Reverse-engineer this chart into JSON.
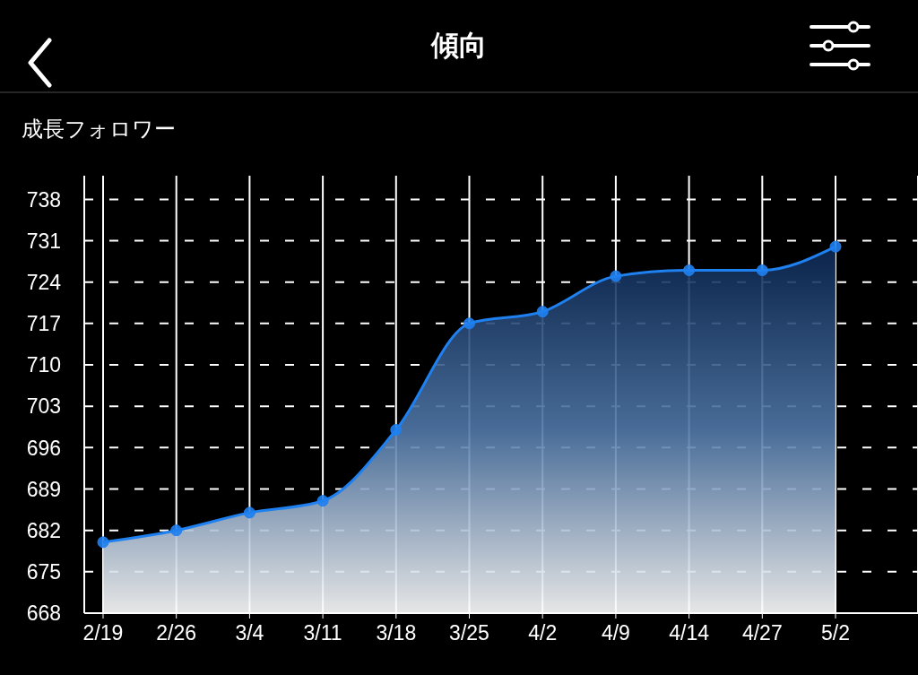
{
  "chart_data": {
    "type": "area",
    "title": "傾向",
    "subtitle": "成長フォロワー",
    "categories": [
      "2/19",
      "2/26",
      "3/4",
      "3/11",
      "3/18",
      "3/25",
      "4/2",
      "4/9",
      "4/14",
      "4/27",
      "5/2"
    ],
    "values": [
      680,
      682,
      685,
      687,
      699,
      717,
      719,
      725,
      726,
      726,
      730
    ],
    "color": "#1f80f0",
    "ylim": [
      668,
      742
    ],
    "yticks": [
      668,
      675,
      682,
      689,
      696,
      703,
      710,
      717,
      724,
      731,
      738
    ],
    "grid": true,
    "marker": "circle"
  }
}
